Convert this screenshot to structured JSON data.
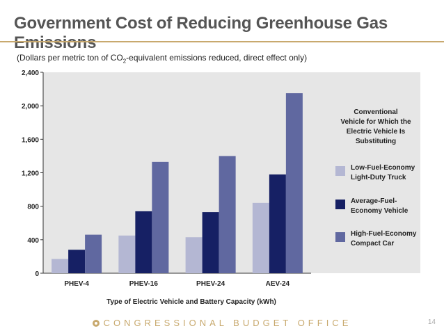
{
  "slide": {
    "title": "Government Cost of Reducing Greenhouse Gas Emissions",
    "subtitle_pre": "(Dollars per metric ton of CO",
    "subtitle_sub": "2",
    "subtitle_post": "-equivalent emissions reduced, direct effect only)",
    "footer": "CONGRESSIONAL BUDGET OFFICE",
    "page_number": "14"
  },
  "chart_data": {
    "type": "bar",
    "categories": [
      "PHEV-4",
      "PHEV-16",
      "PHEV-24",
      "AEV-24"
    ],
    "series": [
      {
        "name": "Low-Fuel-Economy Light-Duty Truck",
        "color": "#b4b7d3",
        "values": [
          170,
          450,
          430,
          840
        ]
      },
      {
        "name": "Average-Fuel-Economy Vehicle",
        "color": "#162064",
        "values": [
          280,
          740,
          730,
          1180
        ]
      },
      {
        "name": "High-Fuel-Economy Compact Car",
        "color": "#6068a0",
        "values": [
          460,
          1330,
          1400,
          2150
        ]
      }
    ],
    "xlabel": "Type of Electric Vehicle and Battery Capacity (kWh)",
    "ylabel": "",
    "ylim": [
      0,
      2400
    ],
    "yticks": [
      0,
      400,
      800,
      1200,
      1600,
      2000,
      2400
    ],
    "ytick_labels": [
      "0",
      "400",
      "800",
      "1,200",
      "1,600",
      "2,000",
      "2,400"
    ],
    "legend_title": "Conventional Vehicle for Which the Electric Vehicle Is Substituting",
    "legend_placement": "right",
    "grid": false,
    "plot_background": "#e6e6e6"
  }
}
